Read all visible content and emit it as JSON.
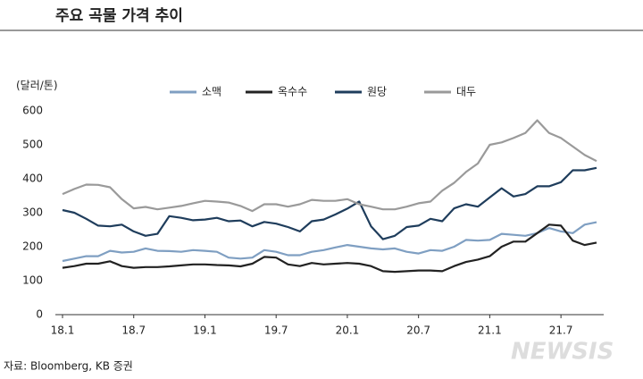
{
  "chart_data": {
    "type": "line",
    "title": "주요 곡물 가격 추이",
    "y_label": "(달러/톤)",
    "source": "자료: Bloomberg, KB 증권",
    "watermark": "NEWSIS",
    "categories": [
      "18.1",
      null,
      null,
      null,
      null,
      null,
      "18.7",
      null,
      null,
      null,
      null,
      null,
      "19.1",
      null,
      null,
      null,
      null,
      null,
      "19.7",
      null,
      null,
      null,
      null,
      null,
      "20.1",
      null,
      null,
      null,
      null,
      null,
      "20.7",
      null,
      null,
      null,
      null,
      null,
      "21.1",
      null,
      null,
      null,
      null,
      null,
      "21.7",
      null,
      null,
      null
    ],
    "ylim": [
      0,
      600
    ],
    "yticks": [
      0,
      100,
      200,
      300,
      400,
      500,
      600
    ],
    "series": [
      {
        "name": "소맥",
        "color": "#7f9fc2",
        "values": [
          158,
          165,
          172,
          172,
          188,
          183,
          185,
          195,
          188,
          187,
          185,
          190,
          188,
          185,
          168,
          165,
          168,
          190,
          185,
          175,
          175,
          185,
          190,
          198,
          205,
          200,
          195,
          192,
          195,
          185,
          180,
          190,
          188,
          200,
          220,
          218,
          220,
          238,
          235,
          232,
          240,
          255,
          245,
          240,
          265,
          272
        ]
      },
      {
        "name": "옥수수",
        "color": "#222222",
        "values": [
          138,
          143,
          150,
          150,
          157,
          143,
          138,
          140,
          140,
          142,
          145,
          148,
          148,
          146,
          145,
          142,
          150,
          170,
          168,
          148,
          143,
          152,
          148,
          150,
          152,
          150,
          143,
          128,
          126,
          128,
          130,
          130,
          128,
          143,
          155,
          162,
          172,
          200,
          215,
          215,
          240,
          265,
          262,
          218,
          205,
          212
        ]
      },
      {
        "name": "원당",
        "color": "#1f3d5c",
        "values": [
          308,
          300,
          282,
          262,
          260,
          265,
          245,
          232,
          238,
          290,
          285,
          278,
          280,
          285,
          275,
          277,
          260,
          273,
          268,
          258,
          245,
          275,
          280,
          295,
          312,
          333,
          260,
          222,
          232,
          258,
          262,
          282,
          275,
          313,
          325,
          318,
          345,
          372,
          348,
          355,
          378,
          378,
          390,
          425,
          425,
          432
        ]
      },
      {
        "name": "대두",
        "color": "#9a9a9a",
        "values": [
          355,
          370,
          383,
          382,
          375,
          340,
          313,
          317,
          310,
          315,
          320,
          328,
          335,
          333,
          330,
          320,
          305,
          325,
          325,
          318,
          325,
          338,
          335,
          335,
          340,
          325,
          318,
          310,
          310,
          318,
          328,
          333,
          365,
          388,
          420,
          445,
          500,
          507,
          520,
          535,
          572,
          535,
          520,
          495,
          470,
          452
        ]
      }
    ]
  }
}
